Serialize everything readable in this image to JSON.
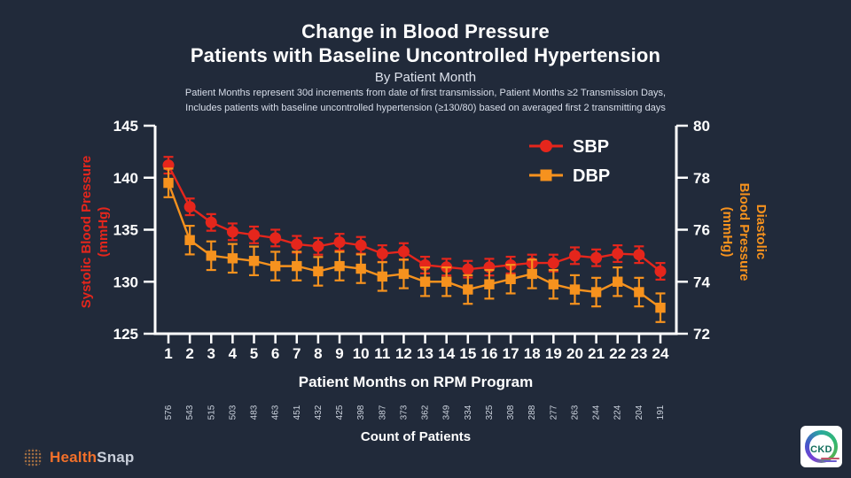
{
  "header": {
    "title_line1": "Change in Blood Pressure",
    "title_line2": "Patients with Baseline Uncontrolled Hypertension",
    "subtitle": "By Patient Month",
    "note_line1": "Patient Months represent 30d increments from date of first transmission,  Patient Months ≥2 Transmission Days,",
    "note_line2": "Includes patients with baseline uncontrolled hypertension (≥130/80) based on averaged first 2 transmitting days"
  },
  "chart_data": {
    "type": "line",
    "x": [
      1,
      2,
      3,
      4,
      5,
      6,
      7,
      8,
      9,
      10,
      11,
      12,
      13,
      14,
      15,
      16,
      17,
      18,
      19,
      20,
      21,
      22,
      23,
      24
    ],
    "xlabel": "Patient Months on RPM Program",
    "left_axis": {
      "lines": [
        "Systolic Blood Pressure",
        "(mmHg)"
      ],
      "ticks": [
        125,
        130,
        135,
        140,
        145
      ],
      "range": [
        125,
        145
      ],
      "color": "#e5261c"
    },
    "right_axis": {
      "lines": [
        "Diastolic",
        "Blood Pressure",
        "(mmHg)"
      ],
      "ticks": [
        72,
        74,
        76,
        78,
        80
      ],
      "range": [
        72,
        80
      ],
      "color": "#f6921e"
    },
    "series": [
      {
        "name": "SBP",
        "axis": "left",
        "color": "#e5261c",
        "marker": "circle",
        "error": 0.8,
        "values": [
          141.2,
          137.2,
          135.7,
          134.8,
          134.5,
          134.2,
          133.6,
          133.4,
          133.8,
          133.5,
          132.7,
          132.9,
          131.6,
          131.4,
          131.2,
          131.4,
          131.6,
          131.8,
          131.8,
          132.5,
          132.3,
          132.7,
          132.6,
          131.0
        ]
      },
      {
        "name": "DBP",
        "axis": "right",
        "color": "#f6921e",
        "marker": "square",
        "error": 0.55,
        "values": [
          77.8,
          75.6,
          75.0,
          74.9,
          74.8,
          74.6,
          74.6,
          74.4,
          74.6,
          74.5,
          74.2,
          74.3,
          74.0,
          74.0,
          73.7,
          73.9,
          74.1,
          74.3,
          73.9,
          73.7,
          73.6,
          74.0,
          73.6,
          73.0
        ]
      }
    ],
    "legend_position": "top-right",
    "grid": false
  },
  "counts": {
    "label": "Count of Patients",
    "values": [
      576,
      543,
      515,
      503,
      483,
      463,
      451,
      432,
      425,
      398,
      387,
      373,
      362,
      349,
      334,
      325,
      308,
      288,
      277,
      263,
      244,
      224,
      204,
      191
    ]
  },
  "footer": {
    "brand_health": "Health",
    "brand_snap": "Snap",
    "ckd_label": "CKD"
  },
  "colors": {
    "background": "#212a3a",
    "sbp": "#e5261c",
    "dbp": "#f6921e",
    "axis": "#ffffff"
  }
}
